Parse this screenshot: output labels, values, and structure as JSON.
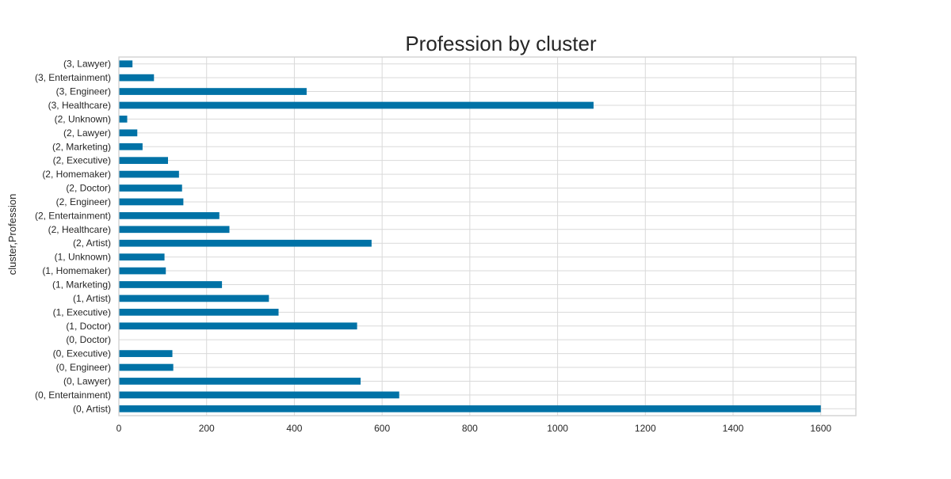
{
  "chart_data": {
    "type": "bar",
    "orientation": "horizontal",
    "title": "Profession by cluster",
    "xlabel": "",
    "ylabel": "cluster,Profession",
    "xlim": [
      0,
      1680
    ],
    "xticks": [
      0,
      200,
      400,
      600,
      800,
      1000,
      1200,
      1400,
      1600
    ],
    "grid": true,
    "bar_color": "#0072a6",
    "categories": [
      "(0, Artist)",
      "(0, Entertainment)",
      "(0, Lawyer)",
      "(0, Engineer)",
      "(0, Executive)",
      "(0, Doctor)",
      "(1, Doctor)",
      "(1, Executive)",
      "(1, Artist)",
      "(1, Marketing)",
      "(1, Homemaker)",
      "(1, Unknown)",
      "(2, Artist)",
      "(2, Healthcare)",
      "(2, Entertainment)",
      "(2, Engineer)",
      "(2, Doctor)",
      "(2, Homemaker)",
      "(2, Executive)",
      "(2, Marketing)",
      "(2, Lawyer)",
      "(2, Unknown)",
      "(3, Healthcare)",
      "(3, Engineer)",
      "(3, Entertainment)",
      "(3, Lawyer)"
    ],
    "values": [
      1600,
      639,
      551,
      124,
      122,
      0,
      543,
      364,
      342,
      235,
      107,
      104,
      576,
      252,
      229,
      147,
      144,
      137,
      112,
      54,
      42,
      19,
      1082,
      428,
      80,
      31
    ]
  }
}
